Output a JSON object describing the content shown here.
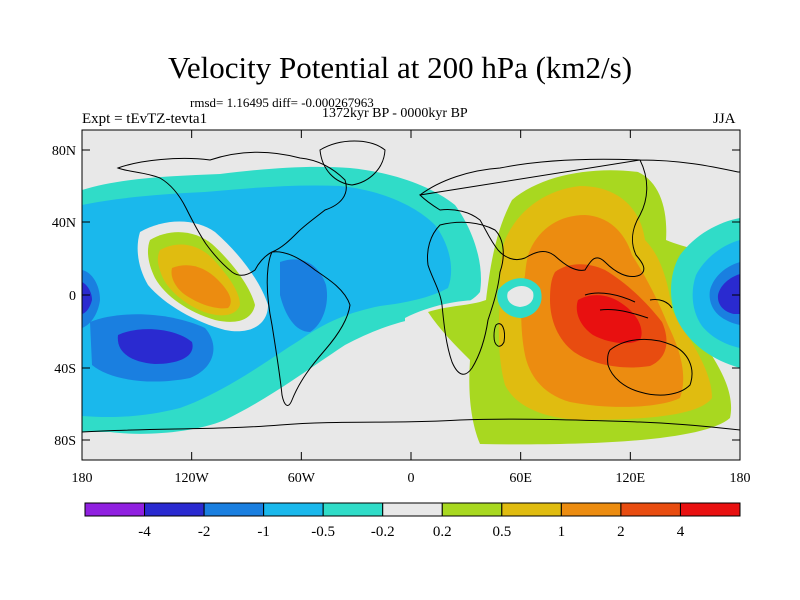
{
  "title": "Velocity Potential at 200 hPa (km2/s)",
  "stats_line": "rmsd= 1.16495 diff= -0.000267963",
  "period": "1372kyr BP - 0000kyr BP",
  "experiment": "Expt = tEvTZ-tevta1",
  "season": "JJA",
  "lat_ticks": [
    "80N",
    "40N",
    "0",
    "40S",
    "80S"
  ],
  "lon_ticks": [
    "180",
    "120W",
    "60W",
    "0",
    "60E",
    "120E",
    "180"
  ],
  "colorbar": {
    "colors": [
      "#9020e0",
      "#2a2ad0",
      "#1a7fe0",
      "#1ab8ec",
      "#30dcc8",
      "#e8e8e8",
      "#a8d820",
      "#e0bc10",
      "#ec8c10",
      "#e84c10",
      "#e81010"
    ],
    "labels": [
      "-4",
      "-2",
      "-1",
      "-0.5",
      "-0.2",
      "0.2",
      "0.5",
      "1",
      "2",
      "4"
    ]
  },
  "colors": {
    "background": "#e8e8e8",
    "coast": "#000000"
  }
}
